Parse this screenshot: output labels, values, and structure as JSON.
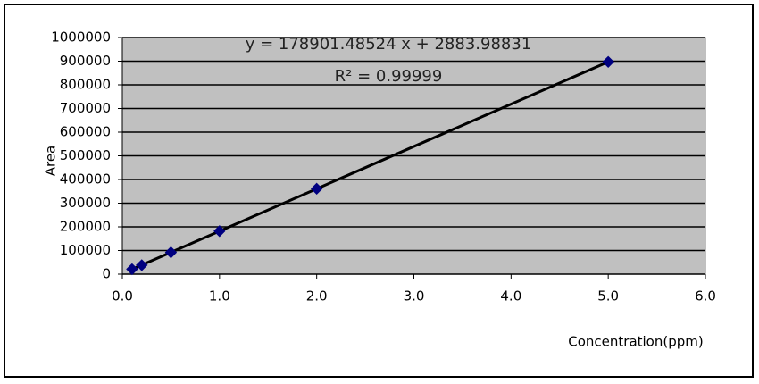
{
  "chart_data": {
    "type": "scatter",
    "annotations": [
      "y = 178901.48524  x + 2883.98831",
      "R² = 0.99999"
    ],
    "x_label": "Concentration(ppm)",
    "y_label": "Area",
    "series": [
      {
        "color": "#000080",
        "marker": "diamond",
        "x": [
          0.1,
          0.2,
          0.5,
          1.0,
          2.0,
          5.0
        ],
        "values": [
          21000,
          38000,
          92000,
          182000,
          361000,
          897000
        ]
      },
      {
        "color": "#000000",
        "line": true,
        "x": [
          0.1,
          5.0
        ],
        "values": [
          20774,
          897392
        ]
      }
    ],
    "xlim": [
      0,
      6
    ],
    "ylim": [
      0,
      1000000
    ],
    "xticks": [
      {
        "value": 0,
        "label": "0.0"
      },
      {
        "value": 1,
        "label": "1.0"
      },
      {
        "value": 2,
        "label": "2.0"
      },
      {
        "value": 3,
        "label": "3.0"
      },
      {
        "value": 4,
        "label": "4.0"
      },
      {
        "value": 5,
        "label": "5.0"
      },
      {
        "value": 6,
        "label": "6.0"
      }
    ],
    "yticks": [
      0,
      100000,
      200000,
      300000,
      400000,
      500000,
      600000,
      700000,
      800000,
      900000,
      1000000
    ],
    "grid": true,
    "plot_background": "#c0c0c0"
  }
}
